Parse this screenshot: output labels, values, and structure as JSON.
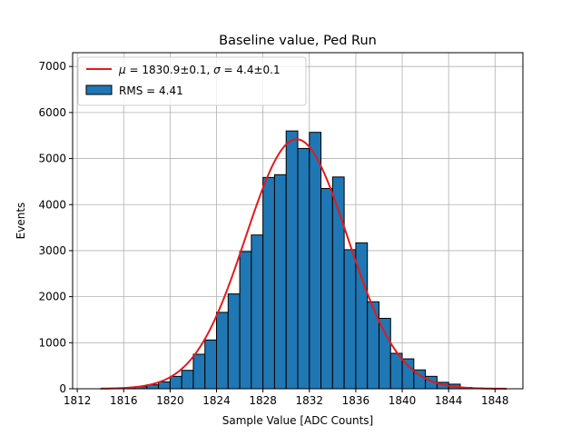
{
  "chart_data": {
    "type": "bar",
    "title": "Baseline value, Ped Run",
    "xlabel": "Sample Value [ADC Counts]",
    "ylabel": "Events",
    "xlim": [
      1811.6,
      1850.4
    ],
    "ylim": [
      0,
      7300
    ],
    "xticks": [
      1812,
      1816,
      1820,
      1824,
      1828,
      1832,
      1836,
      1840,
      1844,
      1848
    ],
    "yticks": [
      0,
      1000,
      2000,
      3000,
      4000,
      5000,
      6000,
      7000
    ],
    "grid": true,
    "legend_position": "top-left",
    "bin_width": 1,
    "bins": [
      {
        "start": 1815,
        "value": 10
      },
      {
        "start": 1816,
        "value": 20
      },
      {
        "start": 1817,
        "value": 45
      },
      {
        "start": 1818,
        "value": 85
      },
      {
        "start": 1819,
        "value": 150
      },
      {
        "start": 1820,
        "value": 270
      },
      {
        "start": 1821,
        "value": 400
      },
      {
        "start": 1822,
        "value": 750
      },
      {
        "start": 1823,
        "value": 1060
      },
      {
        "start": 1824,
        "value": 1660
      },
      {
        "start": 1825,
        "value": 2060
      },
      {
        "start": 1826,
        "value": 2980
      },
      {
        "start": 1827,
        "value": 3340
      },
      {
        "start": 1828,
        "value": 4590
      },
      {
        "start": 1829,
        "value": 4650
      },
      {
        "start": 1830,
        "value": 5600
      },
      {
        "start": 1831,
        "value": 5220
      },
      {
        "start": 1832,
        "value": 5570
      },
      {
        "start": 1833,
        "value": 4350
      },
      {
        "start": 1834,
        "value": 4600
      },
      {
        "start": 1835,
        "value": 3020
      },
      {
        "start": 1836,
        "value": 3170
      },
      {
        "start": 1837,
        "value": 1890
      },
      {
        "start": 1838,
        "value": 1530
      },
      {
        "start": 1839,
        "value": 770
      },
      {
        "start": 1840,
        "value": 650
      },
      {
        "start": 1841,
        "value": 410
      },
      {
        "start": 1842,
        "value": 270
      },
      {
        "start": 1843,
        "value": 140
      },
      {
        "start": 1844,
        "value": 100
      },
      {
        "start": 1845,
        "value": 30
      },
      {
        "start": 1846,
        "value": 15
      }
    ],
    "fit": {
      "mu": 1830.9,
      "sigma": 4.4,
      "amplitude": 5420,
      "x_range": [
        1814,
        1849
      ],
      "color": "#e31a1c"
    },
    "bar_color": "#1f77b4",
    "legend": [
      {
        "type": "line",
        "label_mu": "μ",
        "text_mu": " = 1830.9±0.1, ",
        "label_sigma": "σ",
        "text_sigma": " = 4.4±0.1",
        "color": "#e31a1c"
      },
      {
        "type": "patch",
        "label": "RMS = 4.41",
        "color": "#1f77b4"
      }
    ]
  }
}
